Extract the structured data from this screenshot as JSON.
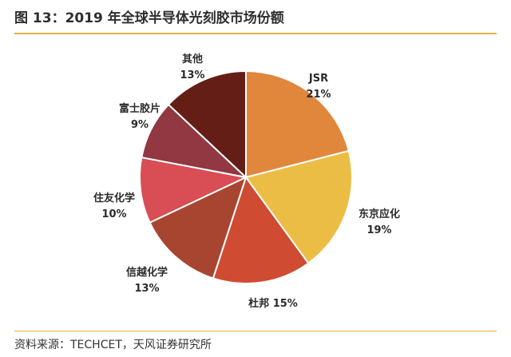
{
  "header": {
    "title": "图 13：2019 年全球半导体光刻胶市场份额"
  },
  "footer": {
    "source": "资料来源：TECHCET，天风证券研究所"
  },
  "chart_data": {
    "type": "pie",
    "title": "图 13：2019 年全球半导体光刻胶市场份额",
    "slices": [
      {
        "label": "JSR",
        "value": 21,
        "display": "21%",
        "color": "#e0873c"
      },
      {
        "label": "东京应化",
        "value": 19,
        "display": "19%",
        "color": "#ecbd45"
      },
      {
        "label": "杜邦",
        "value": 15,
        "display": "杜邦 15%",
        "color": "#cf4b32"
      },
      {
        "label": "信越化学",
        "value": 13,
        "display": "13%",
        "color": "#a84531"
      },
      {
        "label": "住友化学",
        "value": 10,
        "display": "10%",
        "color": "#d94d55"
      },
      {
        "label": "富士胶片",
        "value": 9,
        "display": "9%",
        "color": "#913842"
      },
      {
        "label": "其他",
        "value": 13,
        "display": "13%",
        "color": "#641e16"
      }
    ]
  }
}
